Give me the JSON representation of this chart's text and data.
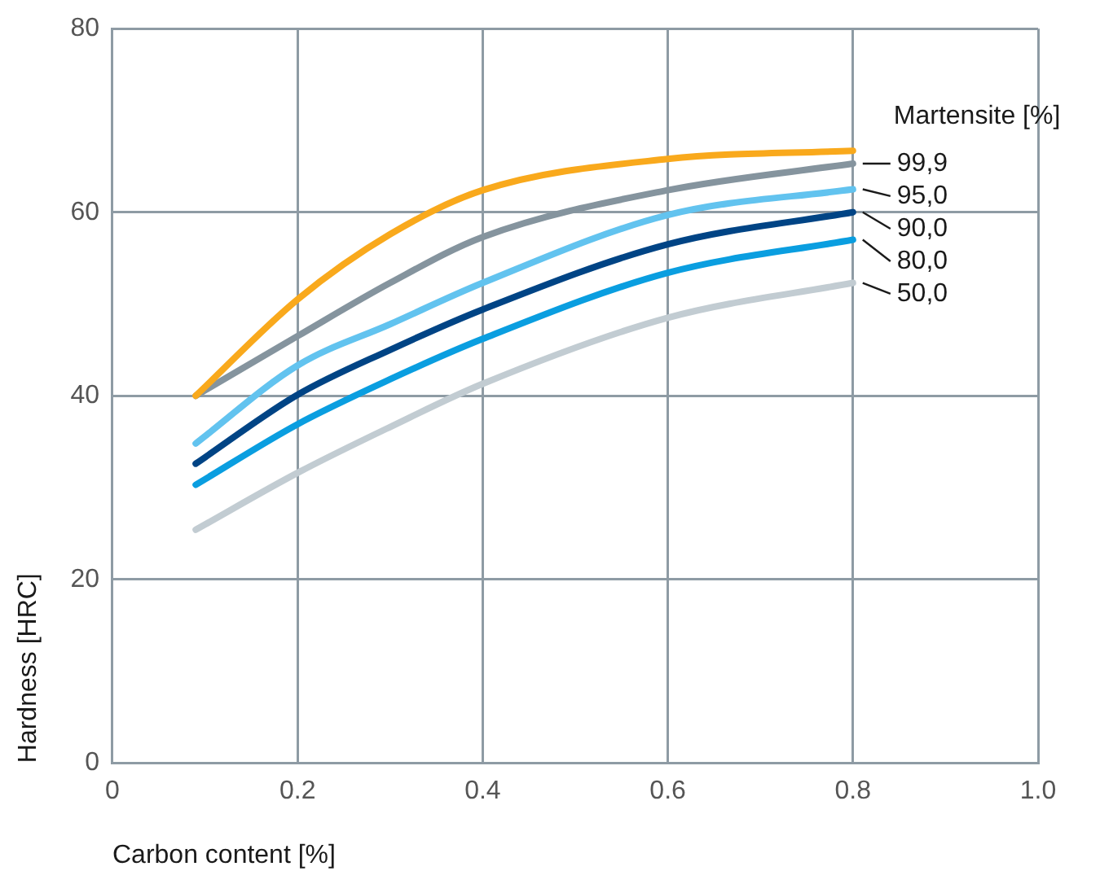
{
  "chart_data": {
    "type": "line",
    "xlabel": "Carbon content [%]",
    "ylabel": "Hardness [HRC]",
    "legend_title": "Martensite [%]",
    "xlim": [
      0,
      1
    ],
    "xticks": [
      0,
      0.2,
      0.4,
      0.6,
      0.8,
      {
        "value": 1,
        "label": "1.0"
      }
    ],
    "ylim": [
      0,
      80
    ],
    "yticks": [
      0,
      20,
      40,
      60,
      80
    ],
    "grid": true,
    "marker": "none",
    "line_style": "solid",
    "legend": false,
    "series": [
      {
        "color": "#f9a91c",
        "x": [
          0.09,
          0.2,
          0.3,
          0.4,
          0.6,
          0.8
        ],
        "values": [
          40,
          50.5,
          57.6,
          62.4,
          65.8,
          66.7
        ]
      },
      {
        "name": "99,9",
        "color": "#85949e",
        "x": [
          0.09,
          0.2,
          0.3,
          0.4,
          0.6,
          0.8
        ],
        "values": [
          40,
          46.5,
          52.3,
          57.3,
          62.4,
          65.3
        ]
      },
      {
        "name": "95,0",
        "color": "#62c3ef",
        "x": [
          0.09,
          0.2,
          0.3,
          0.4,
          0.6,
          0.8
        ],
        "values": [
          34.8,
          43.3,
          47.8,
          52.3,
          59.7,
          62.5
        ]
      },
      {
        "name": "90,0",
        "color": "#004485",
        "x": [
          0.09,
          0.2,
          0.3,
          0.4,
          0.6,
          0.8
        ],
        "values": [
          32.6,
          40.1,
          45,
          49.4,
          56.5,
          60
        ]
      },
      {
        "name": "80,0",
        "color": "#0a9ee0",
        "x": [
          0.09,
          0.2,
          0.3,
          0.4,
          0.6,
          0.8
        ],
        "values": [
          30.3,
          36.9,
          41.8,
          46.2,
          53.4,
          57
        ]
      },
      {
        "name": "50,0",
        "color": "#c2ccd2",
        "x": [
          0.09,
          0.2,
          0.3,
          0.4,
          0.6,
          0.8
        ],
        "values": [
          25.4,
          31.6,
          36.6,
          41.3,
          48.5,
          52.3
        ]
      }
    ]
  }
}
